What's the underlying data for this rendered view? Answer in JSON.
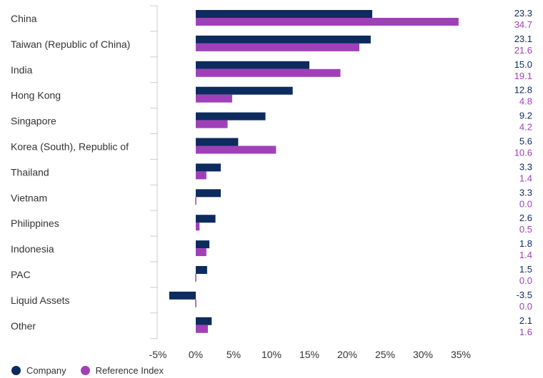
{
  "colors": {
    "company": "#0d2b5e",
    "reference": "#a040b8",
    "axis": "#cccccc"
  },
  "legend": {
    "company_label": "Company",
    "reference_label": "Reference Index"
  },
  "chart_data": {
    "type": "bar",
    "orientation": "horizontal",
    "categories": [
      "China",
      "Taiwan (Republic of China)",
      "India",
      "Hong Kong",
      "Singapore",
      "Korea (South), Republic of",
      "Thailand",
      "Vietnam",
      "Philippines",
      "Indonesia",
      "PAC",
      "Liquid Assets",
      "Other"
    ],
    "series": [
      {
        "name": "Company",
        "values": [
          23.3,
          23.1,
          15.0,
          12.8,
          9.2,
          5.6,
          3.3,
          3.3,
          2.6,
          1.8,
          1.5,
          -3.5,
          2.1
        ],
        "labels": [
          "23.3",
          "23.1",
          "15.0",
          "12.8",
          "9.2",
          "5.6",
          "3.3",
          "3.3",
          "2.6",
          "1.8",
          "1.5",
          "-3.5",
          "2.1"
        ]
      },
      {
        "name": "Reference Index",
        "values": [
          34.7,
          21.6,
          19.1,
          4.8,
          4.2,
          10.6,
          1.4,
          0.0,
          0.5,
          1.4,
          0.0,
          0.0,
          1.6
        ],
        "labels": [
          "34.7",
          "21.6",
          "19.1",
          "4.8",
          "4.2",
          "10.6",
          "1.4",
          "0.0",
          "0.5",
          "1.4",
          "0.0",
          "0.0",
          "1.6"
        ]
      }
    ],
    "xlim": [
      -5,
      40
    ],
    "xticks": [
      -5,
      0,
      5,
      10,
      15,
      20,
      25,
      30,
      35
    ],
    "xtick_labels": [
      "-5%",
      "0%",
      "5%",
      "10%",
      "15%",
      "20%",
      "25%",
      "30%",
      "35%"
    ],
    "grid": false,
    "legend_position": "bottom-left"
  }
}
